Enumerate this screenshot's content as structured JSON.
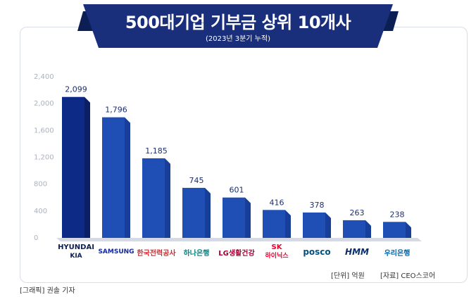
{
  "banner": {
    "title": "500대기업 기부금 상위 10개사",
    "subtitle": "(2023년 3분기 누적)"
  },
  "chart_data": {
    "type": "bar",
    "categories": [
      "HYUNDAI KIA",
      "SAMSUNG",
      "한국전력공사",
      "하나은행",
      "LG생활건강",
      "SK 하이닉스",
      "posco",
      "HMM",
      "우리은행"
    ],
    "values": [
      2099,
      1796,
      1185,
      745,
      601,
      416,
      378,
      263,
      238
    ],
    "value_labels": [
      "2,099",
      "1,796",
      "1,185",
      "745",
      "601",
      "416",
      "378",
      "263",
      "238"
    ],
    "yticks": [
      0,
      400,
      800,
      1200,
      1600,
      2000,
      2400
    ],
    "ytick_labels": [
      "0",
      "400",
      "800",
      "1,200",
      "1,600",
      "2,000",
      "2,400"
    ],
    "ylim": [
      0,
      2400
    ],
    "grid": false,
    "title": "",
    "xlabel": "",
    "ylabel": ""
  },
  "logos": [
    {
      "text": "HYUNDAI",
      "text2": "KIA",
      "icon": "hyundai-kia-logo",
      "color": "#0b1f55"
    },
    {
      "text": "SAMSUNG",
      "icon": "samsung-logo",
      "color": "#1428a0"
    },
    {
      "text": "한국전력공사",
      "icon": "kepco-logo",
      "color": "#d9272e"
    },
    {
      "text": "하나은행",
      "icon": "hana-bank-logo",
      "color": "#008485"
    },
    {
      "text": "LG생활건강",
      "icon": "lg-hh-logo",
      "color": "#a50034"
    },
    {
      "text": "SK",
      "text2": "하이닉스",
      "icon": "sk-hynix-logo",
      "color": "#ea002c"
    },
    {
      "text": "posco",
      "icon": "posco-logo",
      "color": "#05507d"
    },
    {
      "text": "HMM",
      "icon": "hmm-logo",
      "color": "#0a2e6e"
    },
    {
      "text": "우리은행",
      "icon": "woori-bank-logo",
      "color": "#0067ac"
    }
  ],
  "notes": {
    "unit": "[단위] 억원",
    "source": "[자료] CEO스코어",
    "credit": "[그래픽] 권솔 기자"
  },
  "colors": {
    "banner": "#1a2f7c",
    "bar_dark": "#0f2a80",
    "bar_face": "#1f4fb4",
    "bar_side": "#173f9a"
  }
}
